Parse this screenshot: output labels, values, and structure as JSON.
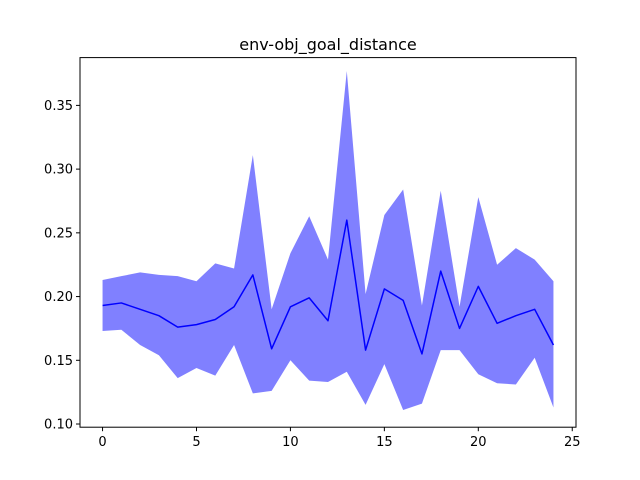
{
  "chart_data": {
    "type": "line",
    "title": "env-obj_goal_distance",
    "xlabel": "",
    "ylabel": "",
    "xlim": [
      -1.2,
      25.2
    ],
    "ylim": [
      0.0975,
      0.3875
    ],
    "x_ticks": [
      0,
      5,
      10,
      15,
      20,
      25
    ],
    "x_tick_labels": [
      "0",
      "5",
      "10",
      "15",
      "20",
      "25"
    ],
    "y_ticks": [
      0.1,
      0.15,
      0.2,
      0.25,
      0.3,
      0.35
    ],
    "y_tick_labels": [
      "0.10",
      "0.15",
      "0.20",
      "0.25",
      "0.30",
      "0.35"
    ],
    "grid": false,
    "legend": "none",
    "line_color": "#0000ff",
    "band_color": "#8080ff",
    "x": [
      0,
      1,
      2,
      3,
      4,
      5,
      6,
      7,
      8,
      9,
      10,
      11,
      12,
      13,
      14,
      15,
      16,
      17,
      18,
      19,
      20,
      21,
      22,
      23,
      24
    ],
    "mean": [
      0.193,
      0.195,
      0.19,
      0.185,
      0.176,
      0.178,
      0.182,
      0.192,
      0.217,
      0.159,
      0.192,
      0.199,
      0.181,
      0.26,
      0.158,
      0.206,
      0.197,
      0.155,
      0.22,
      0.175,
      0.208,
      0.179,
      0.185,
      0.19,
      0.162
    ],
    "upper": [
      0.213,
      0.216,
      0.219,
      0.217,
      0.216,
      0.212,
      0.226,
      0.222,
      0.311,
      0.19,
      0.234,
      0.263,
      0.229,
      0.377,
      0.202,
      0.264,
      0.284,
      0.193,
      0.283,
      0.192,
      0.278,
      0.225,
      0.238,
      0.229,
      0.212
    ],
    "lower": [
      0.173,
      0.174,
      0.162,
      0.154,
      0.136,
      0.144,
      0.138,
      0.162,
      0.124,
      0.126,
      0.15,
      0.134,
      0.133,
      0.141,
      0.115,
      0.147,
      0.111,
      0.116,
      0.158,
      0.158,
      0.139,
      0.132,
      0.131,
      0.152,
      0.113
    ]
  }
}
